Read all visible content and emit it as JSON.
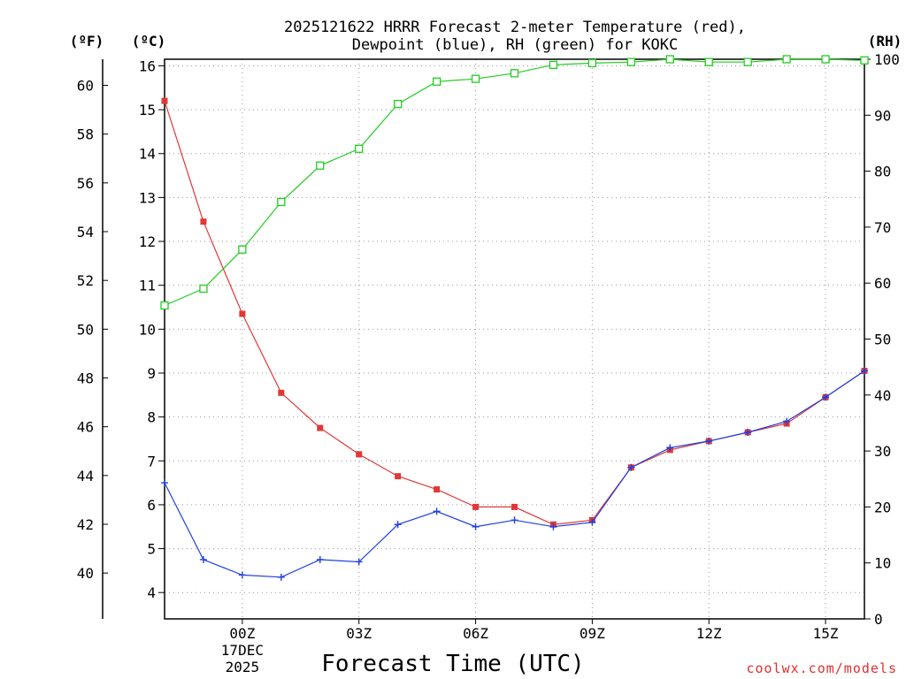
{
  "chart_data": {
    "type": "line",
    "title_line1": "2025121622 HRRR Forecast 2-meter Temperature (red),",
    "title_line2": "Dewpoint (blue), RH (green) for KOKC",
    "xlabel": "Forecast Time (UTC)",
    "credit": "coolwx.com/models",
    "units": {
      "fahrenheit": "(ºF)",
      "celsius": "(ºC)",
      "rh": "(RH)"
    },
    "x_hours": [
      0,
      1,
      2,
      3,
      4,
      5,
      6,
      7,
      8,
      9,
      10,
      11,
      12,
      13,
      14,
      15,
      16,
      17,
      18
    ],
    "x_ticks": [
      {
        "hour": 2,
        "label": "00Z",
        "sub1": "17DEC",
        "sub2": "2025"
      },
      {
        "hour": 5,
        "label": "03Z"
      },
      {
        "hour": 8,
        "label": "06Z"
      },
      {
        "hour": 11,
        "label": "09Z"
      },
      {
        "hour": 14,
        "label": "12Z"
      },
      {
        "hour": 17,
        "label": "15Z"
      }
    ],
    "xlim": [
      0,
      18
    ],
    "celsius_axis": {
      "ylim": [
        3.4,
        16.15
      ],
      "ticks": [
        4,
        5,
        6,
        7,
        8,
        9,
        10,
        11,
        12,
        13,
        14,
        15,
        16
      ]
    },
    "fahrenheit_axis": {
      "ticks": [
        40,
        42,
        44,
        46,
        48,
        50,
        52,
        54,
        56,
        58,
        60
      ]
    },
    "rh_axis": {
      "ylim": [
        0,
        100
      ],
      "ticks": [
        0,
        10,
        20,
        30,
        40,
        50,
        60,
        70,
        80,
        90,
        100
      ]
    },
    "series": [
      {
        "name": "Temperature",
        "unit": "C",
        "color": "#e03838",
        "marker": "filled-square",
        "values": [
          15.2,
          12.45,
          10.35,
          8.55,
          7.75,
          7.15,
          6.65,
          6.35,
          5.95,
          5.95,
          5.55,
          5.65,
          6.85,
          7.25,
          7.45,
          7.65,
          7.85,
          8.45,
          9.05
        ]
      },
      {
        "name": "Dewpoint",
        "unit": "C",
        "color": "#2040e0",
        "marker": "plus",
        "values": [
          6.5,
          4.75,
          4.4,
          4.35,
          4.75,
          4.7,
          5.55,
          5.85,
          5.5,
          5.65,
          5.5,
          5.6,
          6.85,
          7.3,
          7.45,
          7.65,
          7.9,
          8.45,
          9.05
        ]
      },
      {
        "name": "RH",
        "unit": "%",
        "color": "#22cc22",
        "marker": "open-square",
        "values": [
          56,
          59,
          66,
          74.5,
          81,
          84,
          92,
          96,
          96.5,
          97.5,
          99,
          99.3,
          99.5,
          100,
          99.5,
          99.5,
          100,
          100,
          99.8
        ]
      }
    ]
  }
}
